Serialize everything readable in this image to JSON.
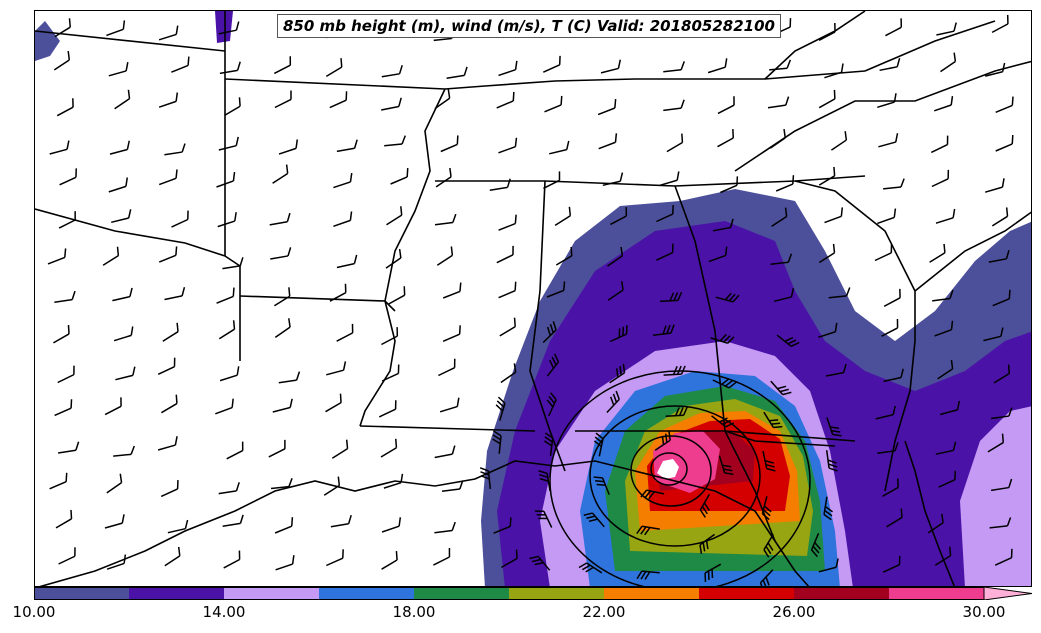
{
  "title": "850 mb height (m), wind (m/s), T (C) Valid: 201805282100",
  "colorbar": {
    "min": 10,
    "max": 30,
    "step": 2,
    "extend": "max",
    "tick_labels": [
      "10.00",
      "14.00",
      "18.00",
      "22.00",
      "26.00",
      "30.00"
    ],
    "tick_values": [
      10,
      14,
      18,
      22,
      26,
      30
    ],
    "colors": [
      "#4c4f9a",
      "#4b12a8",
      "#c49af5",
      "#2f73dc",
      "#1e8a46",
      "#98a512",
      "#f57e00",
      "#d40000",
      "#a3001f",
      "#ee3c8e"
    ],
    "over_color": "#ffb0d8"
  },
  "map": {
    "region": "Southeastern United States",
    "storm_center_color": "#ffffff",
    "boundary_color": "#000000"
  }
}
